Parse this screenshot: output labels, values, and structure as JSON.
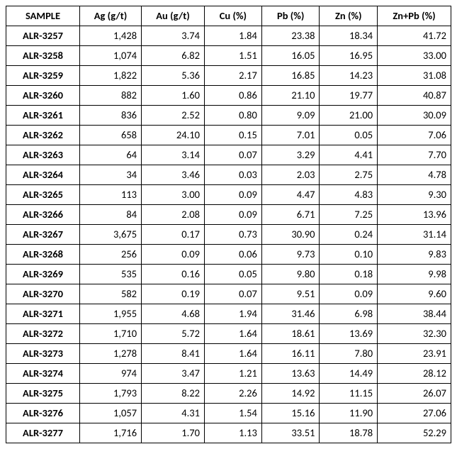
{
  "table": {
    "columns": [
      {
        "key": "sample",
        "label": "SAMPLE",
        "class": "col-sample",
        "cellClass": "sample"
      },
      {
        "key": "ag",
        "label": "Ag (g/t)",
        "class": "col-ag"
      },
      {
        "key": "au",
        "label": "Au (g/t)",
        "class": "col-au"
      },
      {
        "key": "cu",
        "label": "Cu (%)",
        "class": "col-cu"
      },
      {
        "key": "pb",
        "label": "Pb (%)",
        "class": "col-pb"
      },
      {
        "key": "zn",
        "label": "Zn (%)",
        "class": "col-zn"
      },
      {
        "key": "znpb",
        "label": "Zn+Pb (%)",
        "class": "col-znpb"
      }
    ],
    "rows": [
      {
        "sample": "ALR-3257",
        "ag": "1,428",
        "au": "3.74",
        "cu": "1.84",
        "pb": "23.38",
        "zn": "18.34",
        "znpb": "41.72"
      },
      {
        "sample": "ALR-3258",
        "ag": "1,074",
        "au": "6.82",
        "cu": "1.51",
        "pb": "16.05",
        "zn": "16.95",
        "znpb": "33.00"
      },
      {
        "sample": "ALR-3259",
        "ag": "1,822",
        "au": "5.36",
        "cu": "2.17",
        "pb": "16.85",
        "zn": "14.23",
        "znpb": "31.08"
      },
      {
        "sample": "ALR-3260",
        "ag": "882",
        "au": "1.60",
        "cu": "0.86",
        "pb": "21.10",
        "zn": "19.77",
        "znpb": "40.87"
      },
      {
        "sample": "ALR-3261",
        "ag": "836",
        "au": "2.52",
        "cu": "0.80",
        "pb": "9.09",
        "zn": "21.00",
        "znpb": "30.09"
      },
      {
        "sample": "ALR-3262",
        "ag": "658",
        "au": "24.10",
        "cu": "0.15",
        "pb": "7.01",
        "zn": "0.05",
        "znpb": "7.06"
      },
      {
        "sample": "ALR-3263",
        "ag": "64",
        "au": "3.14",
        "cu": "0.07",
        "pb": "3.29",
        "zn": "4.41",
        "znpb": "7.70"
      },
      {
        "sample": "ALR-3264",
        "ag": "34",
        "au": "3.46",
        "cu": "0.03",
        "pb": "2.03",
        "zn": "2.75",
        "znpb": "4.78"
      },
      {
        "sample": "ALR-3265",
        "ag": "113",
        "au": "3.00",
        "cu": "0.09",
        "pb": "4.47",
        "zn": "4.83",
        "znpb": "9.30"
      },
      {
        "sample": "ALR-3266",
        "ag": "84",
        "au": "2.08",
        "cu": "0.09",
        "pb": "6.71",
        "zn": "7.25",
        "znpb": "13.96"
      },
      {
        "sample": "ALR-3267",
        "ag": "3,675",
        "au": "0.17",
        "cu": "0.73",
        "pb": "30.90",
        "zn": "0.24",
        "znpb": "31.14"
      },
      {
        "sample": "ALR-3268",
        "ag": "256",
        "au": "0.09",
        "cu": "0.06",
        "pb": "9.73",
        "zn": "0.10",
        "znpb": "9.83"
      },
      {
        "sample": "ALR-3269",
        "ag": "535",
        "au": "0.16",
        "cu": "0.05",
        "pb": "9.80",
        "zn": "0.18",
        "znpb": "9.98"
      },
      {
        "sample": "ALR-3270",
        "ag": "582",
        "au": "0.19",
        "cu": "0.07",
        "pb": "9.51",
        "zn": "0.09",
        "znpb": "9.60"
      },
      {
        "sample": "ALR-3271",
        "ag": "1,955",
        "au": "4.68",
        "cu": "1.94",
        "pb": "31.46",
        "zn": "6.98",
        "znpb": "38.44"
      },
      {
        "sample": "ALR-3272",
        "ag": "1,710",
        "au": "5.72",
        "cu": "1.64",
        "pb": "18.61",
        "zn": "13.69",
        "znpb": "32.30"
      },
      {
        "sample": "ALR-3273",
        "ag": "1,278",
        "au": "8.41",
        "cu": "1.64",
        "pb": "16.11",
        "zn": "7.80",
        "znpb": "23.91"
      },
      {
        "sample": "ALR-3274",
        "ag": "974",
        "au": "3.47",
        "cu": "1.21",
        "pb": "13.63",
        "zn": "14.49",
        "znpb": "28.12"
      },
      {
        "sample": "ALR-3275",
        "ag": "1,793",
        "au": "8.22",
        "cu": "2.26",
        "pb": "14.92",
        "zn": "11.15",
        "znpb": "26.07"
      },
      {
        "sample": "ALR-3276",
        "ag": "1,057",
        "au": "4.31",
        "cu": "1.54",
        "pb": "15.16",
        "zn": "11.90",
        "znpb": "27.06"
      },
      {
        "sample": "ALR-3277",
        "ag": "1,716",
        "au": "1.70",
        "cu": "1.13",
        "pb": "33.51",
        "zn": "18.78",
        "znpb": "52.29"
      }
    ]
  }
}
